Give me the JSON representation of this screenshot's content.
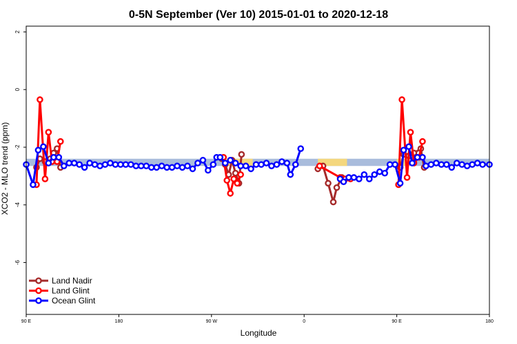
{
  "chart_data": {
    "type": "line",
    "title": "0-5N September (Ver 10)   2015-01-01 to 2020-12-18",
    "xlabel": "Longitude",
    "ylabel": "XCO2 - MLO trend (ppm)",
    "xlim": [
      -90,
      180
    ],
    "ylim": [
      -7.8,
      2.2
    ],
    "x_ticks": [
      {
        "value": -90,
        "label": "90 E"
      },
      {
        "value": -36,
        "label": "180"
      },
      {
        "value": 18,
        "label": "90 W"
      },
      {
        "value": 72,
        "label": "0"
      },
      {
        "value": 126,
        "label": "90 E"
      },
      {
        "value": 180,
        "label": "180"
      }
    ],
    "y_ticks": [
      2,
      0,
      -2,
      -4,
      -6
    ],
    "grid": false,
    "legend_position": "bottom-left",
    "bands": [
      {
        "x0": -90,
        "x1": 180,
        "y0": -2.65,
        "y1": -2.4,
        "color": "#a9bcdc"
      },
      {
        "x0": 25,
        "x1": 42,
        "y0": -2.65,
        "y1": -2.4,
        "color": "#f4d77e"
      },
      {
        "x0": 80,
        "x1": 97,
        "y0": -2.65,
        "y1": -2.4,
        "color": "#f4d77e"
      },
      {
        "x0": 126,
        "x1": 132,
        "y0": -2.65,
        "y1": -2.4,
        "color": "#f4d77e"
      }
    ],
    "series": [
      {
        "name": "Land Nadir",
        "color": "#a52a2a",
        "segments": [
          [
            [
              -84,
              -2.7
            ],
            [
              -82,
              -2.4
            ],
            [
              -79,
              -2.5
            ],
            [
              -76,
              -2.4
            ],
            [
              -74,
              -2.2
            ],
            [
              -72,
              -2.05
            ],
            [
              -70,
              -2.7
            ]
          ],
          [
            [
              24,
              -2.4
            ],
            [
              26,
              -2.6
            ],
            [
              28,
              -2.95
            ],
            [
              30,
              -2.45
            ],
            [
              32,
              -2.9
            ],
            [
              34,
              -3.25
            ],
            [
              35.5,
              -2.25
            ]
          ],
          [
            [
              80,
              -2.75
            ],
            [
              83,
              -2.65
            ],
            [
              86,
              -3.25
            ],
            [
              89,
              -3.9
            ],
            [
              91,
              -3.4
            ],
            [
              94,
              -3.05
            ]
          ],
          [
            [
              128,
              -2.7
            ],
            [
              130,
              -2.25
            ],
            [
              133,
              -2.3
            ],
            [
              136,
              -2.2
            ],
            [
              140,
              -2.05
            ],
            [
              142,
              -2.7
            ]
          ]
        ]
      },
      {
        "name": "Land Glint",
        "color": "#ff0000",
        "segments": [
          [
            [
              -84,
              -3.3
            ],
            [
              -82,
              -0.35
            ],
            [
              -79,
              -3.1
            ],
            [
              -77,
              -1.48
            ],
            [
              -75,
              -2.5
            ],
            [
              -72,
              -2.5
            ],
            [
              -70,
              -1.8
            ]
          ],
          [
            [
              25,
              -2.35
            ],
            [
              27,
              -3.15
            ],
            [
              29,
              -3.6
            ],
            [
              31,
              -3.1
            ],
            [
              33,
              -3.25
            ],
            [
              35,
              -2.95
            ]
          ],
          [
            [
              81,
              -2.65
            ],
            [
              93,
              -3.05
            ],
            [
              96,
              -3.1
            ],
            [
              99,
              -3.1
            ]
          ],
          [
            [
              127,
              -3.3
            ],
            [
              129,
              -0.35
            ],
            [
              132,
              -3.05
            ],
            [
              134,
              -1.48
            ],
            [
              136,
              -2.55
            ],
            [
              139,
              -2.35
            ],
            [
              141,
              -1.8
            ]
          ]
        ]
      },
      {
        "name": "Ocean Glint",
        "color": "#0000ff",
        "segments": [
          [
            [
              -90,
              -2.6
            ],
            [
              -86,
              -3.3
            ],
            [
              -83,
              -2.1
            ],
            [
              -80,
              -1.98
            ],
            [
              -77,
              -2.55
            ],
            [
              -74,
              -2.35
            ],
            [
              -71,
              -2.35
            ],
            [
              -68,
              -2.65
            ],
            [
              -65,
              -2.55
            ],
            [
              -62,
              -2.55
            ],
            [
              -59,
              -2.6
            ],
            [
              -56,
              -2.7
            ],
            [
              -53,
              -2.55
            ],
            [
              -50,
              -2.6
            ],
            [
              -47,
              -2.65
            ],
            [
              -44,
              -2.6
            ],
            [
              -41,
              -2.55
            ],
            [
              -38,
              -2.6
            ],
            [
              -35,
              -2.6
            ],
            [
              -32,
              -2.6
            ],
            [
              -29,
              -2.6
            ],
            [
              -26,
              -2.65
            ],
            [
              -23,
              -2.65
            ],
            [
              -20,
              -2.65
            ],
            [
              -17,
              -2.7
            ],
            [
              -14,
              -2.7
            ],
            [
              -11,
              -2.65
            ],
            [
              -8,
              -2.7
            ],
            [
              -5,
              -2.7
            ],
            [
              -2,
              -2.65
            ],
            [
              1,
              -2.7
            ],
            [
              4,
              -2.65
            ],
            [
              7,
              -2.75
            ],
            [
              10,
              -2.55
            ],
            [
              13,
              -2.45
            ],
            [
              16,
              -2.8
            ],
            [
              19,
              -2.6
            ],
            [
              21,
              -2.35
            ],
            [
              23,
              -2.35
            ],
            [
              26,
              -2.55
            ],
            [
              29,
              -2.45
            ],
            [
              32,
              -2.55
            ],
            [
              35,
              -2.65
            ],
            [
              38,
              -2.65
            ],
            [
              41,
              -2.75
            ],
            [
              44,
              -2.6
            ],
            [
              47,
              -2.6
            ],
            [
              50,
              -2.55
            ],
            [
              53,
              -2.65
            ],
            [
              56,
              -2.6
            ],
            [
              59,
              -2.5
            ],
            [
              62,
              -2.55
            ],
            [
              64,
              -2.95
            ],
            [
              67,
              -2.6
            ],
            [
              70,
              -2.05
            ]
          ],
          [
            [
              93,
              -3.1
            ],
            [
              95,
              -3.2
            ],
            [
              98,
              -3.05
            ],
            [
              101,
              -3.05
            ],
            [
              104,
              -3.1
            ],
            [
              107,
              -2.95
            ],
            [
              110,
              -3.1
            ],
            [
              113,
              -2.95
            ],
            [
              116,
              -2.85
            ],
            [
              119,
              -2.9
            ],
            [
              122,
              -2.6
            ],
            [
              125,
              -2.6
            ],
            [
              128,
              -3.25
            ],
            [
              130,
              -2.1
            ],
            [
              133,
              -1.98
            ],
            [
              135,
              -2.55
            ],
            [
              138,
              -2.35
            ],
            [
              141,
              -2.35
            ],
            [
              143,
              -2.65
            ],
            [
              146,
              -2.6
            ],
            [
              149,
              -2.55
            ],
            [
              152,
              -2.6
            ],
            [
              155,
              -2.6
            ],
            [
              158,
              -2.7
            ],
            [
              161,
              -2.55
            ],
            [
              164,
              -2.6
            ],
            [
              167,
              -2.65
            ],
            [
              170,
              -2.6
            ],
            [
              173,
              -2.55
            ],
            [
              176,
              -2.6
            ],
            [
              180,
              -2.6
            ]
          ]
        ]
      }
    ]
  }
}
